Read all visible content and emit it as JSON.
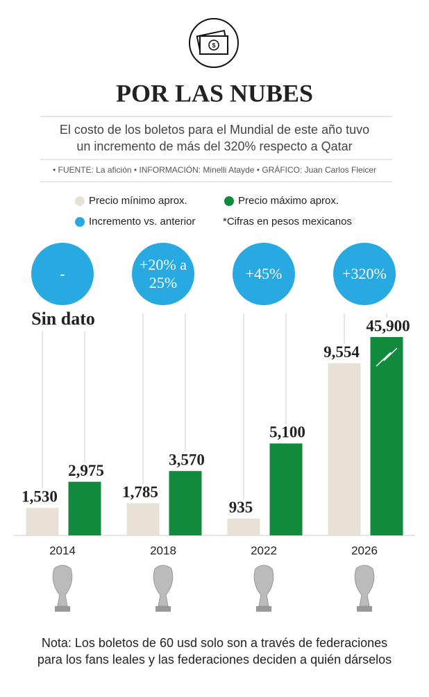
{
  "chart_data": {
    "type": "bar",
    "title": "POR LAS NUBES",
    "subtitle": [
      "El costo de los boletos para el Mundial de este año tuvo",
      "un incremento de más del 320% respecto a Qatar"
    ],
    "source": "• FUENTE: La afición • INFORMACIÓN: Minelli Atayde • GRÁFICO: Juan Carlos Fleicer",
    "categories": [
      "2014",
      "2018",
      "2022",
      "2026"
    ],
    "series": [
      {
        "name": "Precio mínimo aprox.",
        "color": "#e8e2d6",
        "values": [
          1530,
          1785,
          935,
          9554
        ],
        "value_labels": [
          "1,530",
          "1,785",
          "935",
          "9,554"
        ]
      },
      {
        "name": "Precio máximo aprox.",
        "color": "#128a3e",
        "values": [
          2975,
          3570,
          5100,
          45900
        ],
        "value_labels": [
          "2,975",
          "3,570",
          "5,100",
          "45,900"
        ]
      }
    ],
    "increment": {
      "name": "Incremento vs. anterior",
      "color": "#29a9e1",
      "labels": [
        [
          "-"
        ],
        [
          "+20% a",
          "25%"
        ],
        [
          "+45%"
        ],
        [
          "+320%"
        ]
      ]
    },
    "annotation": "Sin dato",
    "currency_note": "*Cifras en pesos mexicanos",
    "ylim": [
      0,
      11000
    ],
    "note": [
      "Nota: Los boletos de 60 usd solo son a través de federaciones",
      "para los fans leales y las federaciones deciden a quién dárselos"
    ]
  }
}
